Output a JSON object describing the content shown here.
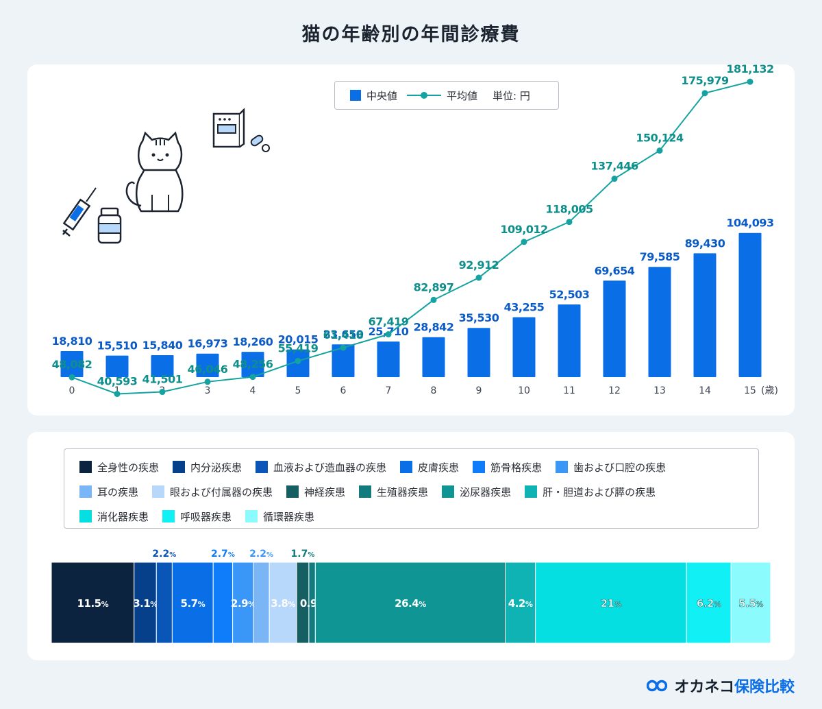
{
  "title": "猫の年齢別の年間診療費",
  "legend": {
    "median_label": "中央値",
    "mean_label": "平均値",
    "unit": "単位: 円"
  },
  "colors": {
    "median": "#0a6fe6",
    "mean": "#14a3a0",
    "background": "#eef3f8"
  },
  "chart_data": [
    {
      "type": "bar",
      "title": "猫の年齢別の年間診療費",
      "xlabel": "(歳)",
      "ylabel": "",
      "categories": [
        "0",
        "1",
        "2",
        "3",
        "4",
        "5",
        "6",
        "7",
        "8",
        "9",
        "10",
        "11",
        "12",
        "13",
        "14",
        "15"
      ],
      "series": [
        {
          "name": "中央値",
          "kind": "bar",
          "values": [
            18810,
            15510,
            15840,
            16973,
            18260,
            20015,
            23650,
            25710,
            28842,
            35530,
            43255,
            52503,
            69654,
            79585,
            89430,
            104093
          ],
          "labels": [
            "18,810",
            "15,510",
            "15,840",
            "16,973",
            "18,260",
            "20,015",
            "23,650",
            "25,710",
            "28,842",
            "35,530",
            "43,255",
            "52,503",
            "69,654",
            "79,585",
            "89,430",
            "104,093"
          ]
        },
        {
          "name": "平均値",
          "kind": "line",
          "values": [
            48082,
            40593,
            41501,
            46046,
            48256,
            55419,
            61418,
            67419,
            82897,
            92912,
            109012,
            118005,
            137446,
            150124,
            175979,
            181132
          ],
          "labels": [
            "48,082",
            "40,593",
            "41,501",
            "46,046",
            "48,256",
            "55,419",
            "61,418",
            "67,419",
            "82,897",
            "92,912",
            "109,012",
            "118,005",
            "137,446",
            "150,124",
            "175,979",
            "181,132"
          ]
        }
      ],
      "unit": "単位: 円",
      "grid": false,
      "legend_position": "top-center"
    },
    {
      "type": "bar",
      "stacked": "100%",
      "orientation": "horizontal",
      "categories": [
        "全身性の疾患",
        "内分泌疾患",
        "血液および造血器の疾患",
        "皮膚疾患",
        "筋骨格疾患",
        "歯および口腔の疾患",
        "耳の疾患",
        "眼および付属器の疾患",
        "神経疾患",
        "生殖器疾患",
        "泌尿器疾患",
        "肝・胆道および膵の疾患",
        "消化器疾患",
        "呼吸器疾患",
        "循環器疾患"
      ],
      "values": [
        11.5,
        3.1,
        2.2,
        5.7,
        2.7,
        2.9,
        2.2,
        3.8,
        1.7,
        0.9,
        26.4,
        4.2,
        21,
        6.2,
        5.5
      ],
      "value_labels": [
        "11.5",
        "3.1",
        "2.2",
        "5.7",
        "2.7",
        "2.9",
        "2.2",
        "3.8",
        "1.7",
        "0.9",
        "26.4",
        "4.2",
        "21",
        "6.2",
        "5.5"
      ],
      "unit": "%",
      "colors": [
        "#0c2340",
        "#063f8a",
        "#0a55b8",
        "#0a6fe6",
        "#0f7dfa",
        "#3a96f7",
        "#7ab6f5",
        "#b7d7fb",
        "#155e62",
        "#137b7d",
        "#0e9594",
        "#10b3b3",
        "#06dfe2",
        "#11f0f4",
        "#8cfbfd"
      ]
    }
  ],
  "brand": {
    "name_kana": "オカネコ",
    "name_kanji": "保険比較"
  }
}
